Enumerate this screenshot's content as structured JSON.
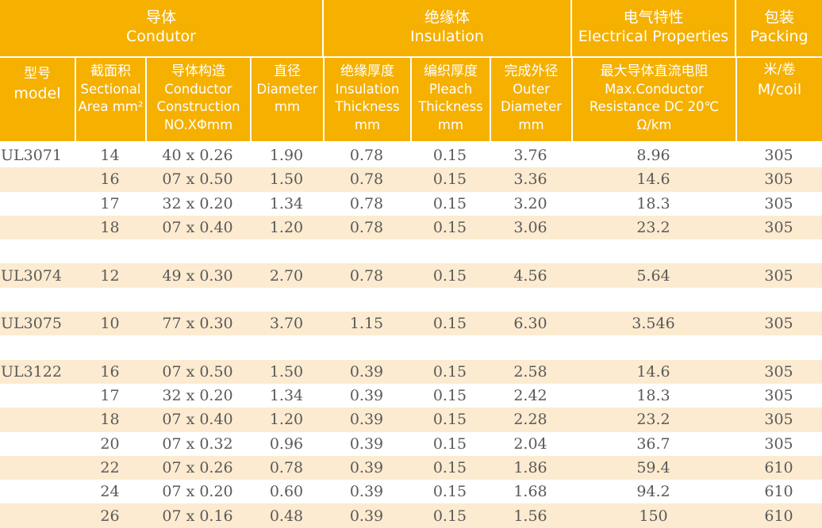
{
  "header": {
    "groups": [
      {
        "zh": "导体",
        "en": "Condutor"
      },
      {
        "zh": "绝缘体",
        "en": "Insulation"
      },
      {
        "zh": "电气特性",
        "en": "Electrical Properties"
      },
      {
        "zh": "包装",
        "en": "Packing"
      }
    ],
    "columns": [
      {
        "zh": "型号",
        "en": [
          "model"
        ]
      },
      {
        "zh": "截面积",
        "en": [
          "Sectional",
          "Area mm²"
        ]
      },
      {
        "zh": "导体构造",
        "en": [
          "Conductor",
          "Construction",
          "NO.XΦmm"
        ]
      },
      {
        "zh": "直径",
        "en": [
          "Diameter",
          "mm"
        ]
      },
      {
        "zh": "绝缘厚度",
        "en": [
          "Insulation",
          "Thickness",
          "mm"
        ]
      },
      {
        "zh": "编织厚度",
        "en": [
          "Pleach",
          "Thickness",
          "mm"
        ]
      },
      {
        "zh": "完成外径",
        "en": [
          "Outer",
          "Diameter",
          "mm"
        ]
      },
      {
        "zh": "最大导体直流电阻",
        "en": [
          "Max.Conductor",
          "Resistance DC 20℃",
          "Ω/km"
        ]
      },
      {
        "zh": "米/卷",
        "en": [
          "M/coil"
        ]
      }
    ]
  },
  "colors": {
    "header": "#F5B000",
    "stripe": "#FCEBD0",
    "text": "#5a5a5a"
  },
  "rows": [
    [
      "UL3071",
      "14",
      "40 x 0.26",
      "1.90",
      "0.78",
      "0.15",
      "3.76",
      "8.96",
      "305"
    ],
    [
      "",
      "16",
      "07 x 0.50",
      "1.50",
      "0.78",
      "0.15",
      "3.36",
      "14.6",
      "305"
    ],
    [
      "",
      "17",
      "32 x 0.20",
      "1.34",
      "0.78",
      "0.15",
      "3.20",
      "18.3",
      "305"
    ],
    [
      "",
      "18",
      "07 x 0.40",
      "1.20",
      "0.78",
      "0.15",
      "3.06",
      "23.2",
      "305"
    ],
    [
      "",
      "",
      "",
      "",
      "",
      "",
      "",
      "",
      ""
    ],
    [
      "UL3074",
      "12",
      "49 x 0.30",
      "2.70",
      "0.78",
      "0.15",
      "4.56",
      "5.64",
      "305"
    ],
    [
      "",
      "",
      "",
      "",
      "",
      "",
      "",
      "",
      ""
    ],
    [
      "UL3075",
      "10",
      "77 x 0.30",
      "3.70",
      "1.15",
      "0.15",
      "6.30",
      "3.546",
      "305"
    ],
    [
      "",
      "",
      "",
      "",
      "",
      "",
      "",
      "",
      ""
    ],
    [
      "UL3122",
      "16",
      "07 x 0.50",
      "1.50",
      "0.39",
      "0.15",
      "2.58",
      "14.6",
      "305"
    ],
    [
      "",
      "17",
      "32 x 0.20",
      "1.34",
      "0.39",
      "0.15",
      "2.42",
      "18.3",
      "305"
    ],
    [
      "",
      "18",
      "07 x 0.40",
      "1.20",
      "0.39",
      "0.15",
      "2.28",
      "23.2",
      "305"
    ],
    [
      "",
      "20",
      "07 x 0.32",
      "0.96",
      "0.39",
      "0.15",
      "2.04",
      "36.7",
      "305"
    ],
    [
      "",
      "22",
      "07 x 0.26",
      "0.78",
      "0.39",
      "0.15",
      "1.86",
      "59.4",
      "610"
    ],
    [
      "",
      "24",
      "07 x 0.20",
      "0.60",
      "0.39",
      "0.15",
      "1.68",
      "94.2",
      "610"
    ],
    [
      "",
      "26",
      "07 x 0.16",
      "0.48",
      "0.39",
      "0.15",
      "1.56",
      "150",
      "610"
    ]
  ]
}
